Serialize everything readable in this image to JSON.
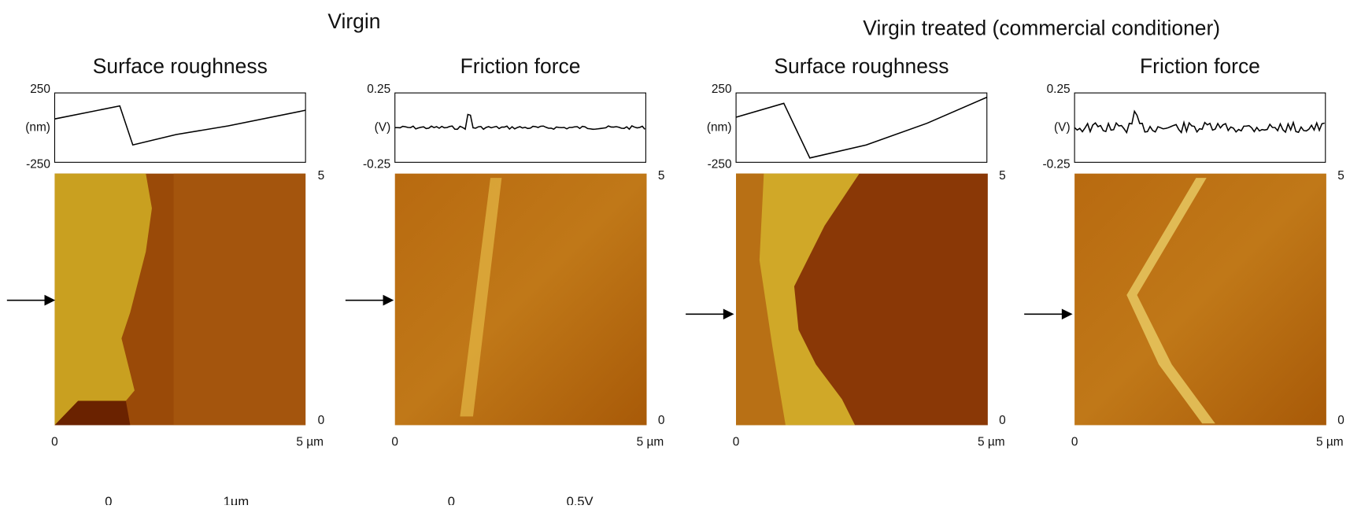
{
  "headings": [
    "Virgin",
    "Virgin treated (commercial conditioner)"
  ],
  "panels": [
    {
      "title": "Surface roughness",
      "profile_top": "250",
      "profile_unit": "(nm)",
      "profile_bottom": "-250",
      "scale_top": "5",
      "scale_bottom": "0",
      "x_start": "0",
      "x_end": "5 µm"
    },
    {
      "title": "Friction force",
      "profile_top": "0.25",
      "profile_unit": "(V)",
      "profile_bottom": "-0.25",
      "scale_top": "5",
      "scale_bottom": "0",
      "x_start": "0",
      "x_end": "5 µm"
    },
    {
      "title": "Surface roughness",
      "profile_top": "250",
      "profile_unit": "(nm)",
      "profile_bottom": "-250",
      "scale_top": "5",
      "scale_bottom": "0",
      "x_start": "0",
      "x_end": "5 µm"
    },
    {
      "title": "Friction force",
      "profile_top": "0.25",
      "profile_unit": "(V)",
      "profile_bottom": "-0.25",
      "scale_top": "5",
      "scale_bottom": "0",
      "x_start": "0",
      "x_end": "5 µm"
    }
  ],
  "colorbars": [
    {
      "min": "0",
      "max": "1µm"
    },
    {
      "min": "0",
      "max": "0.5V"
    }
  ]
}
